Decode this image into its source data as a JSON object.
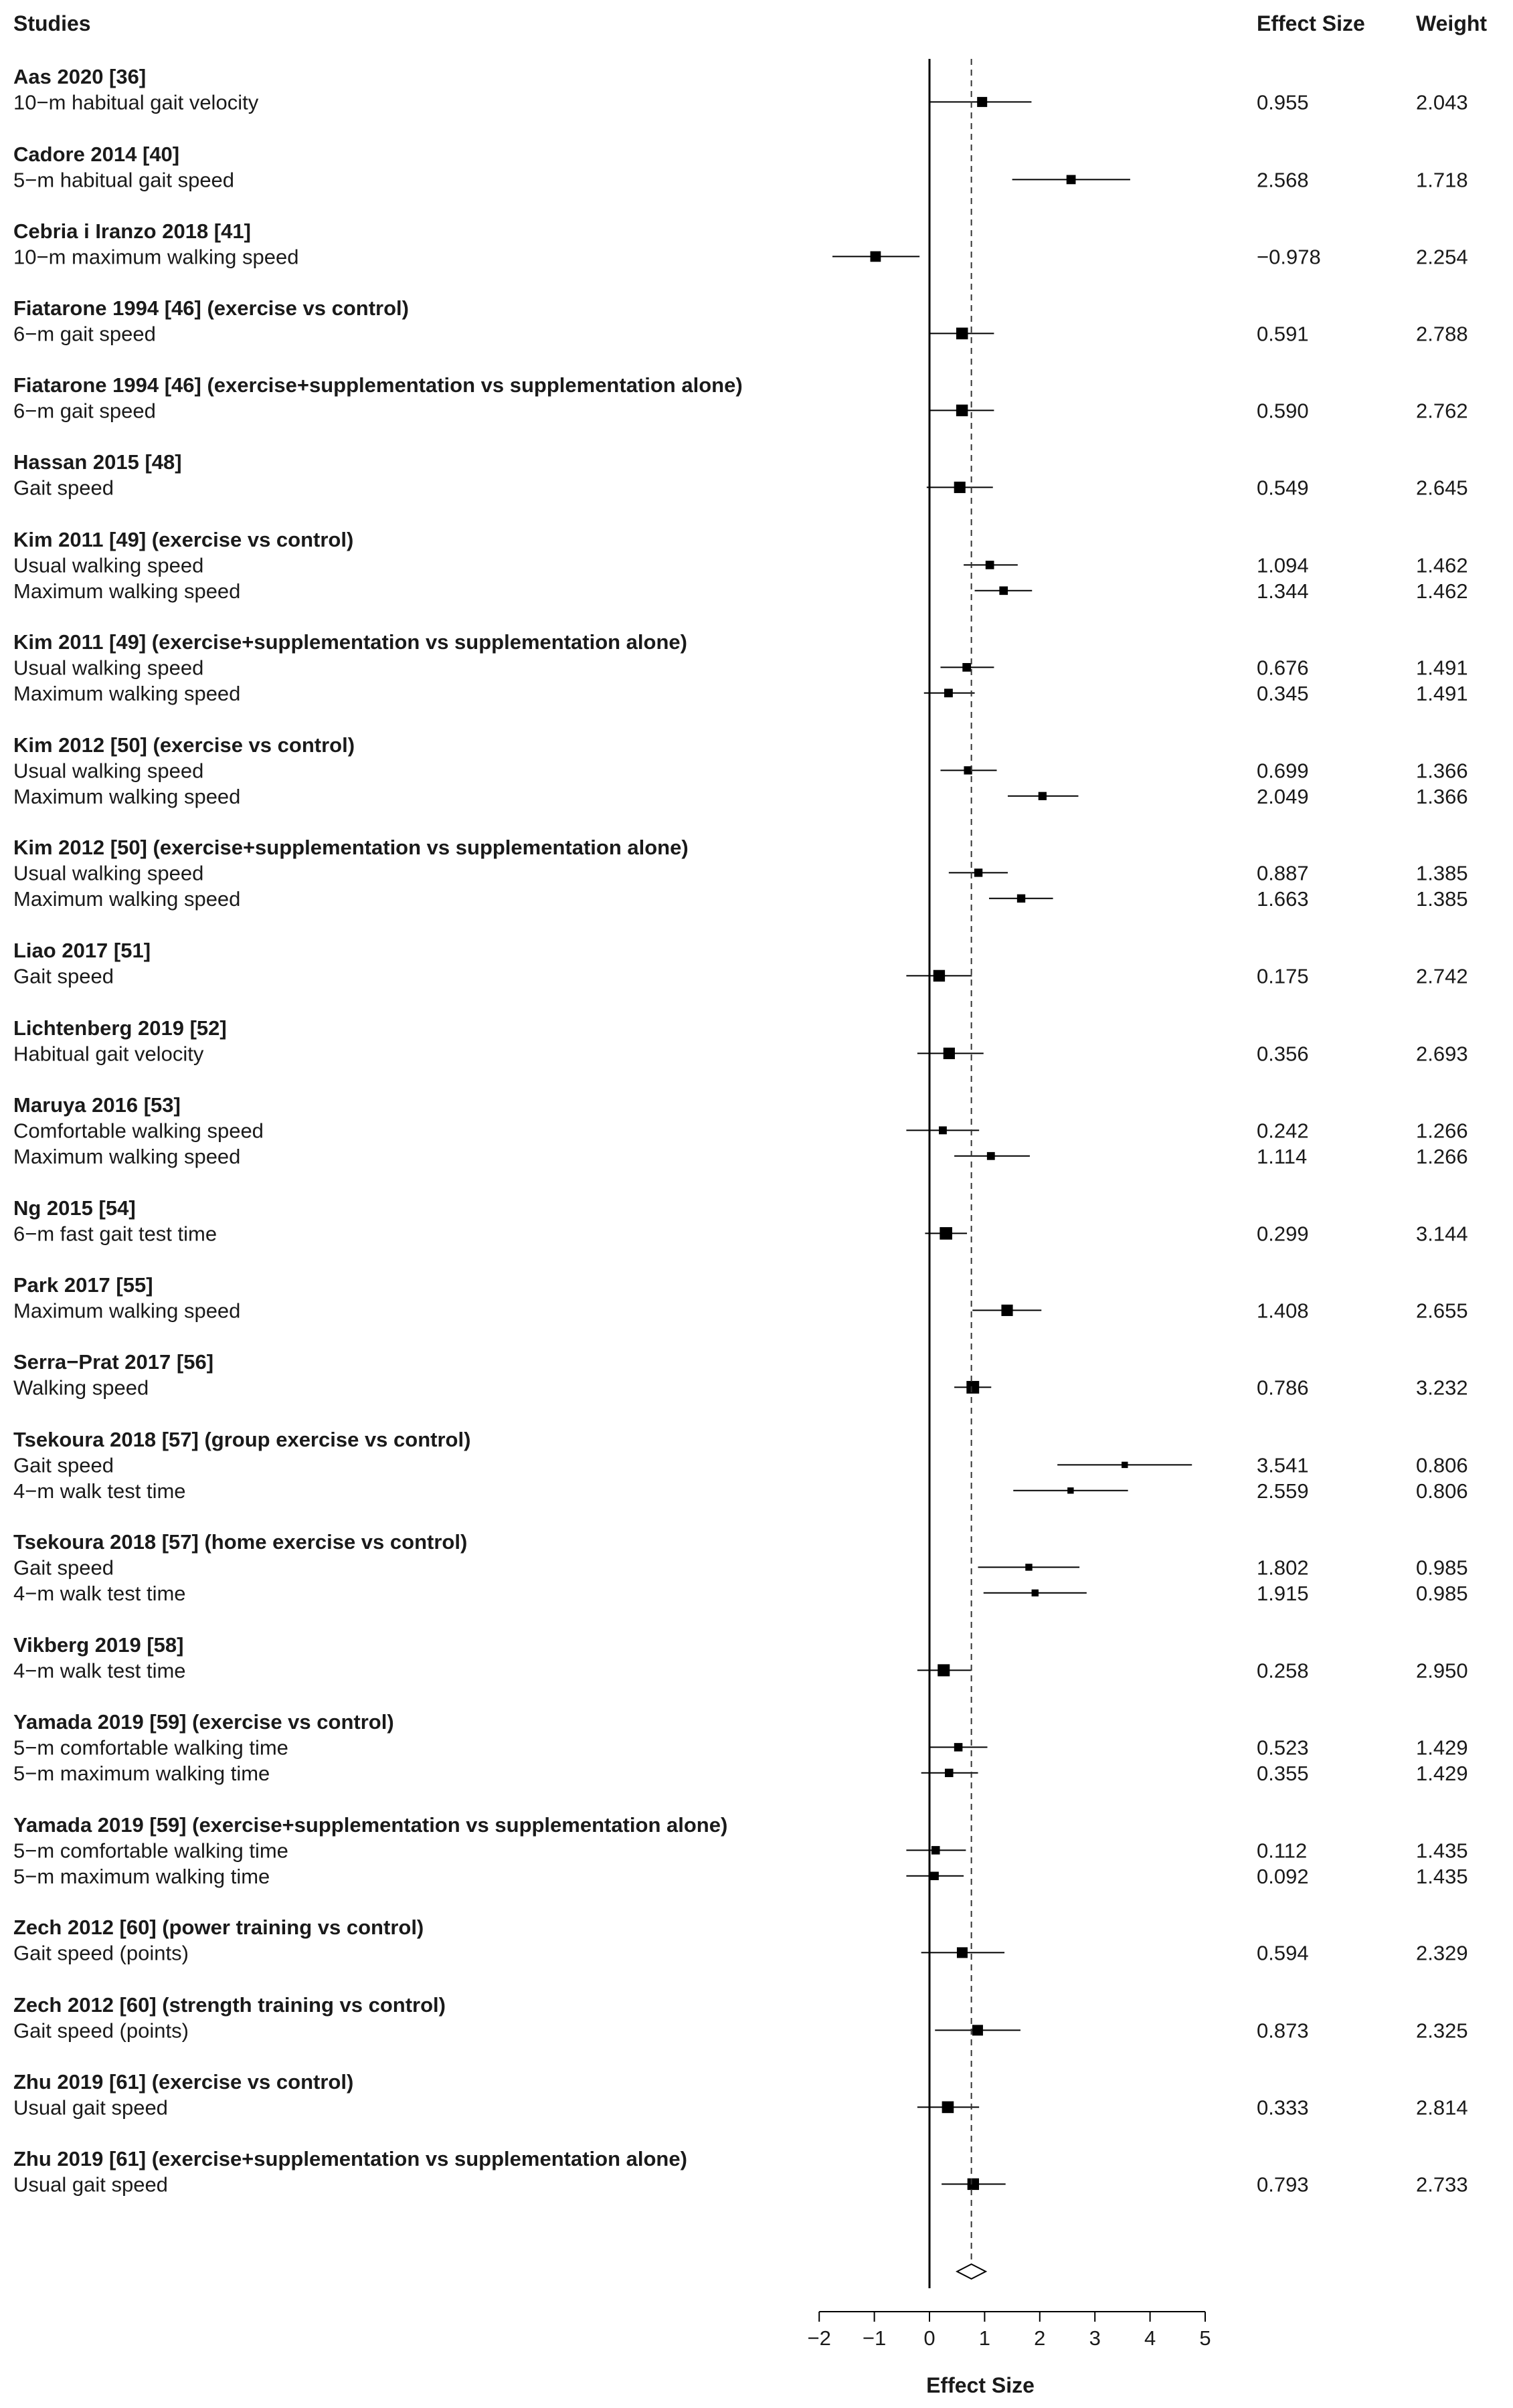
{
  "chart_data": {
    "type": "forest",
    "headers": {
      "studies": "Studies",
      "effect_size": "Effect Size",
      "weight": "Weight"
    },
    "xlabel": "Effect Size",
    "xlim": [
      -2,
      5
    ],
    "xticks": [
      "−2",
      "−1",
      "0",
      "1",
      "2",
      "3",
      "4",
      "5"
    ],
    "reference_line": 0,
    "pooled_estimate": 0.76,
    "pooled_ci": [
      0.5,
      1.02
    ],
    "groups": [
      {
        "study": "Aas 2020 [36]",
        "rows": [
          {
            "outcome": "10−m habitual gait velocity",
            "effect": 0.955,
            "effect_label": "0.955",
            "ci": [
              0.0,
              1.85
            ],
            "weight": 2.043,
            "weight_label": "2.043"
          }
        ]
      },
      {
        "study": "Cadore 2014 [40]",
        "rows": [
          {
            "outcome": "5−m habitual gait speed",
            "effect": 2.568,
            "effect_label": "2.568",
            "ci": [
              1.5,
              3.64
            ],
            "weight": 1.718,
            "weight_label": "1.718"
          }
        ]
      },
      {
        "study": "Cebria i Iranzo 2018 [41]",
        "rows": [
          {
            "outcome": "10−m maximum walking speed",
            "effect": -0.978,
            "effect_label": "−0.978",
            "ci": [
              -1.76,
              -0.18
            ],
            "weight": 2.254,
            "weight_label": "2.254"
          }
        ]
      },
      {
        "study": "Fiatarone 1994 [46] (exercise vs control)",
        "rows": [
          {
            "outcome": "6−m gait speed",
            "effect": 0.591,
            "effect_label": "0.591",
            "ci": [
              0.0,
              1.17
            ],
            "weight": 2.788,
            "weight_label": "2.788"
          }
        ]
      },
      {
        "study": "Fiatarone 1994 [46] (exercise+supplementation vs supplementation alone)",
        "rows": [
          {
            "outcome": "6−m gait speed",
            "effect": 0.59,
            "effect_label": "0.590",
            "ci": [
              0.0,
              1.17
            ],
            "weight": 2.762,
            "weight_label": "2.762"
          }
        ]
      },
      {
        "study": "Hassan 2015 [48]",
        "rows": [
          {
            "outcome": "Gait speed",
            "effect": 0.549,
            "effect_label": "0.549",
            "ci": [
              -0.05,
              1.15
            ],
            "weight": 2.645,
            "weight_label": "2.645"
          }
        ]
      },
      {
        "study": "Kim 2011 [49] (exercise vs control)",
        "rows": [
          {
            "outcome": "Usual walking speed",
            "effect": 1.094,
            "effect_label": "1.094",
            "ci": [
              0.62,
              1.6
            ],
            "weight": 1.462,
            "weight_label": "1.462"
          },
          {
            "outcome": "Maximum walking speed",
            "effect": 1.344,
            "effect_label": "1.344",
            "ci": [
              0.82,
              1.86
            ],
            "weight": 1.462,
            "weight_label": "1.462"
          }
        ]
      },
      {
        "study": "Kim 2011 [49] (exercise+supplementation vs supplementation alone)",
        "rows": [
          {
            "outcome": "Usual walking speed",
            "effect": 0.676,
            "effect_label": "0.676",
            "ci": [
              0.2,
              1.17
            ],
            "weight": 1.491,
            "weight_label": "1.491"
          },
          {
            "outcome": "Maximum walking speed",
            "effect": 0.345,
            "effect_label": "0.345",
            "ci": [
              -0.1,
              0.82
            ],
            "weight": 1.491,
            "weight_label": "1.491"
          }
        ]
      },
      {
        "study": "Kim 2012 [50] (exercise vs control)",
        "rows": [
          {
            "outcome": "Usual walking speed",
            "effect": 0.699,
            "effect_label": "0.699",
            "ci": [
              0.2,
              1.22
            ],
            "weight": 1.366,
            "weight_label": "1.366"
          },
          {
            "outcome": "Maximum walking speed",
            "effect": 2.049,
            "effect_label": "2.049",
            "ci": [
              1.42,
              2.7
            ],
            "weight": 1.366,
            "weight_label": "1.366"
          }
        ]
      },
      {
        "study": "Kim 2012 [50] (exercise+supplementation vs supplementation alone)",
        "rows": [
          {
            "outcome": "Usual walking speed",
            "effect": 0.887,
            "effect_label": "0.887",
            "ci": [
              0.35,
              1.42
            ],
            "weight": 1.385,
            "weight_label": "1.385"
          },
          {
            "outcome": "Maximum walking speed",
            "effect": 1.663,
            "effect_label": "1.663",
            "ci": [
              1.08,
              2.24
            ],
            "weight": 1.385,
            "weight_label": "1.385"
          }
        ]
      },
      {
        "study": "Liao 2017 [51]",
        "rows": [
          {
            "outcome": "Gait speed",
            "effect": 0.175,
            "effect_label": "0.175",
            "ci": [
              -0.42,
              0.77
            ],
            "weight": 2.742,
            "weight_label": "2.742"
          }
        ]
      },
      {
        "study": "Lichtenberg 2019 [52]",
        "rows": [
          {
            "outcome": "Habitual gait velocity",
            "effect": 0.356,
            "effect_label": "0.356",
            "ci": [
              -0.22,
              0.98
            ],
            "weight": 2.693,
            "weight_label": "2.693"
          }
        ]
      },
      {
        "study": "Maruya 2016 [53]",
        "rows": [
          {
            "outcome": "Comfortable walking speed",
            "effect": 0.242,
            "effect_label": "0.242",
            "ci": [
              -0.42,
              0.9
            ],
            "weight": 1.266,
            "weight_label": "1.266"
          },
          {
            "outcome": "Maximum walking speed",
            "effect": 1.114,
            "effect_label": "1.114",
            "ci": [
              0.45,
              1.82
            ],
            "weight": 1.266,
            "weight_label": "1.266"
          }
        ]
      },
      {
        "study": "Ng 2015 [54]",
        "rows": [
          {
            "outcome": "6−m fast gait test time",
            "effect": 0.299,
            "effect_label": "0.299",
            "ci": [
              -0.08,
              0.68
            ],
            "weight": 3.144,
            "weight_label": "3.144"
          }
        ]
      },
      {
        "study": "Park 2017 [55]",
        "rows": [
          {
            "outcome": "Maximum walking speed",
            "effect": 1.408,
            "effect_label": "1.408",
            "ci": [
              0.78,
              2.03
            ],
            "weight": 2.655,
            "weight_label": "2.655"
          }
        ]
      },
      {
        "study": "Serra−Prat 2017 [56]",
        "rows": [
          {
            "outcome": "Walking speed",
            "effect": 0.786,
            "effect_label": "0.786",
            "ci": [
              0.45,
              1.12
            ],
            "weight": 3.232,
            "weight_label": "3.232"
          }
        ]
      },
      {
        "study": "Tsekoura 2018 [57] (group exercise vs control)",
        "rows": [
          {
            "outcome": "Gait speed",
            "effect": 3.541,
            "effect_label": "3.541",
            "ci": [
              2.32,
              4.76
            ],
            "weight": 0.806,
            "weight_label": "0.806"
          },
          {
            "outcome": "4−m walk test time",
            "effect": 2.559,
            "effect_label": "2.559",
            "ci": [
              1.52,
              3.6
            ],
            "weight": 0.806,
            "weight_label": "0.806"
          }
        ]
      },
      {
        "study": "Tsekoura 2018 [57] (home exercise vs control)",
        "rows": [
          {
            "outcome": "Gait speed",
            "effect": 1.802,
            "effect_label": "1.802",
            "ci": [
              0.88,
              2.72
            ],
            "weight": 0.985,
            "weight_label": "0.985"
          },
          {
            "outcome": "4−m walk test time",
            "effect": 1.915,
            "effect_label": "1.915",
            "ci": [
              0.98,
              2.85
            ],
            "weight": 0.985,
            "weight_label": "0.985"
          }
        ]
      },
      {
        "study": "Vikberg 2019 [58]",
        "rows": [
          {
            "outcome": "4−m walk test time",
            "effect": 0.258,
            "effect_label": "0.258",
            "ci": [
              -0.22,
              0.76
            ],
            "weight": 2.95,
            "weight_label": "2.950"
          }
        ]
      },
      {
        "study": "Yamada 2019 [59] (exercise vs control)",
        "rows": [
          {
            "outcome": "5−m comfortable walking time",
            "effect": 0.523,
            "effect_label": "0.523",
            "ci": [
              0.0,
              1.05
            ],
            "weight": 1.429,
            "weight_label": "1.429"
          },
          {
            "outcome": "5−m maximum walking time",
            "effect": 0.355,
            "effect_label": "0.355",
            "ci": [
              -0.15,
              0.88
            ],
            "weight": 1.429,
            "weight_label": "1.429"
          }
        ]
      },
      {
        "study": "Yamada 2019 [59] (exercise+supplementation vs supplementation alone)",
        "rows": [
          {
            "outcome": "5−m comfortable walking time",
            "effect": 0.112,
            "effect_label": "0.112",
            "ci": [
              -0.42,
              0.66
            ],
            "weight": 1.435,
            "weight_label": "1.435"
          },
          {
            "outcome": "5−m maximum walking time",
            "effect": 0.092,
            "effect_label": "0.092",
            "ci": [
              -0.42,
              0.62
            ],
            "weight": 1.435,
            "weight_label": "1.435"
          }
        ]
      },
      {
        "study": "Zech 2012 [60] (power training vs control)",
        "rows": [
          {
            "outcome": "Gait speed (points)",
            "effect": 0.594,
            "effect_label": "0.594",
            "ci": [
              -0.15,
              1.36
            ],
            "weight": 2.329,
            "weight_label": "2.329"
          }
        ]
      },
      {
        "study": "Zech 2012 [60] (strength training vs control)",
        "rows": [
          {
            "outcome": "Gait speed (points)",
            "effect": 0.873,
            "effect_label": "0.873",
            "ci": [
              0.1,
              1.65
            ],
            "weight": 2.325,
            "weight_label": "2.325"
          }
        ]
      },
      {
        "study": "Zhu 2019 [61] (exercise vs control)",
        "rows": [
          {
            "outcome": "Usual gait speed",
            "effect": 0.333,
            "effect_label": "0.333",
            "ci": [
              -0.22,
              0.9
            ],
            "weight": 2.814,
            "weight_label": "2.814"
          }
        ]
      },
      {
        "study": "Zhu 2019 [61] (exercise+supplementation vs supplementation alone)",
        "rows": [
          {
            "outcome": "Usual gait speed",
            "effect": 0.793,
            "effect_label": "0.793",
            "ci": [
              0.22,
              1.38
            ],
            "weight": 2.733,
            "weight_label": "2.733"
          }
        ]
      }
    ]
  }
}
